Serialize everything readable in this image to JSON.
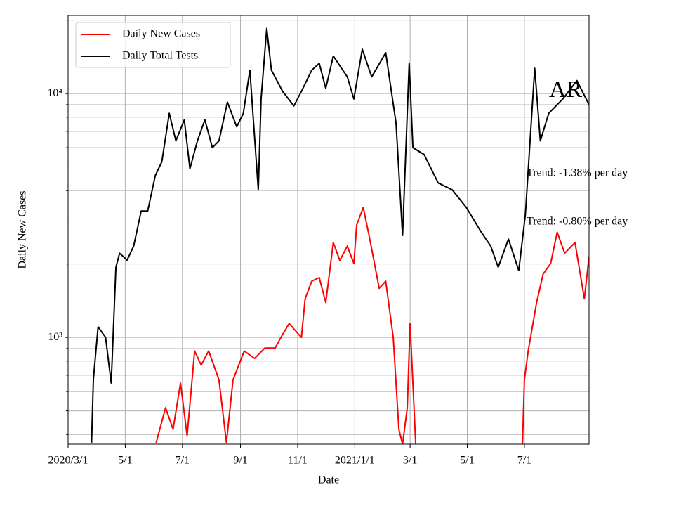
{
  "chart_data": {
    "type": "line",
    "xlabel": "Date",
    "ylabel": "Daily New Cases",
    "log_y": true,
    "grid": true,
    "legend": "upper left",
    "xlim": [
      "2020-03-01",
      "2021-09-08"
    ],
    "xticks": [
      {
        "value": "2020-03-01",
        "label": "2020/3/1"
      },
      {
        "value": "2020-05-01",
        "label": "5/1"
      },
      {
        "value": "2020-07-01",
        "label": "7/1"
      },
      {
        "value": "2020-09-01",
        "label": "9/1"
      },
      {
        "value": "2020-11-01",
        "label": "11/1"
      },
      {
        "value": "2021-01-01",
        "label": "2021/1/1"
      },
      {
        "value": "2021-03-01",
        "label": "3/1"
      },
      {
        "value": "2021-05-01",
        "label": "5/1"
      },
      {
        "value": "2021-07-01",
        "label": "7/1"
      }
    ],
    "ylim": [
      365,
      20900
    ],
    "yticks": [
      {
        "value": 1000,
        "label": "10³"
      },
      {
        "value": 10000,
        "label": "10⁴"
      }
    ],
    "yminorticks": [
      400,
      500,
      600,
      700,
      800,
      900,
      2000,
      3000,
      4000,
      5000,
      6000,
      7000,
      8000,
      9000,
      20000
    ],
    "annotations": [
      {
        "text": "Trend: -1.38% per day"
      },
      {
        "text": "Trend: -0.80% per day"
      },
      {
        "text": "AR"
      }
    ],
    "series": [
      {
        "name": "Daily New Cases",
        "color": "#ff0000",
        "x": [
          "2020-06-03",
          "2020-06-13",
          "2020-06-21",
          "2020-06-29",
          "2020-07-06",
          "2020-07-14",
          "2020-07-21",
          "2020-07-29",
          "2020-08-09",
          "2020-08-17",
          "2020-08-24",
          "2020-09-05",
          "2020-09-16",
          "2020-09-27",
          "2020-10-08",
          "2020-10-16",
          "2020-10-23",
          "2020-11-05",
          "2020-11-09",
          "2020-11-16",
          "2020-11-24",
          "2020-12-01",
          "2020-12-09",
          "2020-12-16",
          "2020-12-24",
          "2020-12-31",
          "2021-01-03",
          "2021-01-10",
          "2021-01-17",
          "2021-01-27",
          "2021-02-03",
          "2021-02-11",
          "2021-02-17",
          "2021-02-21",
          "2021-02-26",
          "2021-03-01",
          "2021-03-07",
          "2021-05-01",
          "2021-06-29",
          "2021-07-01",
          "2021-07-05",
          "2021-07-14",
          "2021-07-21",
          "2021-07-29",
          "2021-08-05",
          "2021-08-13",
          "2021-08-24",
          "2021-09-03",
          "2021-09-08"
        ],
        "values": [
          370,
          515,
          420,
          650,
          395,
          880,
          770,
          880,
          670,
          370,
          670,
          880,
          820,
          905,
          905,
          1030,
          1140,
          1000,
          1440,
          1700,
          1760,
          1390,
          2450,
          2070,
          2370,
          2010,
          2890,
          3410,
          2530,
          1590,
          1700,
          1000,
          420,
          365,
          515,
          1140,
          365,
          null,
          365,
          670,
          880,
          1390,
          1820,
          2010,
          2700,
          2215,
          2450,
          1440,
          2145
        ]
      },
      {
        "name": "Daily Total Tests",
        "color": "#000000",
        "x": [
          "2020-03-26",
          "2020-03-28",
          "2020-04-02",
          "2020-04-10",
          "2020-04-16",
          "2020-04-21",
          "2020-04-25",
          "2020-05-03",
          "2020-05-10",
          "2020-05-18",
          "2020-05-25",
          "2020-06-02",
          "2020-06-09",
          "2020-06-17",
          "2020-06-24",
          "2020-07-03",
          "2020-07-09",
          "2020-07-17",
          "2020-07-25",
          "2020-08-02",
          "2020-08-09",
          "2020-08-18",
          "2020-08-28",
          "2020-09-04",
          "2020-09-11",
          "2020-09-20",
          "2020-09-23",
          "2020-09-29",
          "2020-10-04",
          "2020-10-16",
          "2020-10-28",
          "2020-11-05",
          "2020-11-16",
          "2020-11-24",
          "2020-12-01",
          "2020-12-09",
          "2020-12-24",
          "2020-12-31",
          "2021-01-09",
          "2021-01-19",
          "2021-02-03",
          "2021-02-14",
          "2021-02-21",
          "2021-02-28",
          "2021-03-04",
          "2021-03-16",
          "2021-03-31",
          "2021-04-15",
          "2021-04-30",
          "2021-05-16",
          "2021-05-26",
          "2021-06-03",
          "2021-06-14",
          "2021-06-25",
          "2021-07-02",
          "2021-07-12",
          "2021-07-18",
          "2021-07-27",
          "2021-08-11",
          "2021-08-26",
          "2021-09-08"
        ],
        "values": [
          370,
          672,
          1105,
          1000,
          650,
          1940,
          2215,
          2075,
          2370,
          3300,
          3300,
          4600,
          5250,
          8300,
          6400,
          7800,
          4920,
          6400,
          7800,
          6000,
          6400,
          9230,
          7300,
          8300,
          12460,
          4030,
          9500,
          18500,
          12460,
          10200,
          8900,
          10200,
          12460,
          13300,
          10500,
          14250,
          11700,
          9500,
          15200,
          11700,
          14700,
          7550,
          2620,
          13300,
          6000,
          5620,
          4300,
          4030,
          3410,
          2700,
          2370,
          1940,
          2530,
          1880,
          3190,
          12700,
          6400,
          8300,
          9500,
          11300,
          9000
        ]
      }
    ]
  }
}
